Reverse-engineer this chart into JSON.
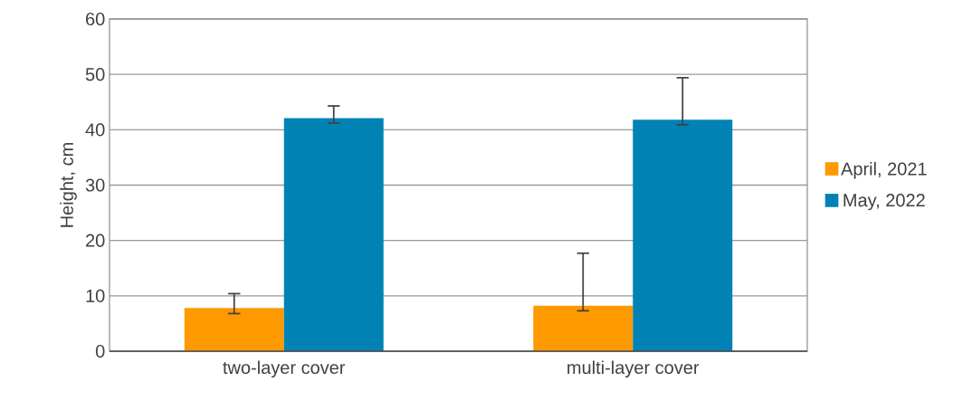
{
  "chart_data": {
    "type": "bar",
    "ylabel": "Height, cm",
    "categories": [
      "two-layer cover",
      "multi-layer cover"
    ],
    "series": [
      {
        "name": "April, 2021",
        "color": "#ff9900",
        "values": [
          7.8,
          8.2
        ],
        "errors": [
          [
            6.8,
            10.4
          ],
          [
            7.3,
            17.7
          ]
        ]
      },
      {
        "name": "May, 2022",
        "color": "#0083b4",
        "values": [
          42.1,
          41.8
        ],
        "errors": [
          [
            41.2,
            44.3
          ],
          [
            40.9,
            49.4
          ]
        ]
      }
    ],
    "ylim": [
      0,
      60
    ],
    "yticks": [
      0,
      10,
      20,
      30,
      40,
      50,
      60
    ],
    "grid": "y",
    "legend": "right"
  }
}
